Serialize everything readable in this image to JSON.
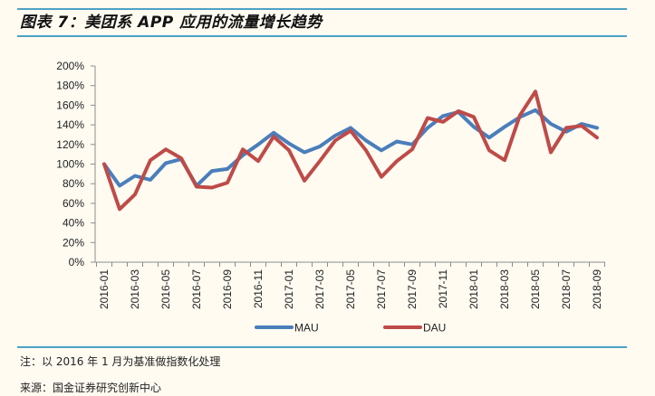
{
  "header": {
    "title": "图表 7：美团系 APP 应用的流量增长趋势"
  },
  "footer": {
    "note": "注：以 2016 年 1 月为基准做指数化处理",
    "source": "来源：国金证券研究创新中心"
  },
  "colors": {
    "rule": "#4DA1C6",
    "mau": "#4A7EBB",
    "dau": "#BE4B48",
    "background": "#FFFBF1"
  },
  "chart_data": {
    "type": "line",
    "title": "美团系 APP 应用的流量增长趋势",
    "xlabel": "",
    "ylabel": "",
    "ylim": [
      0,
      200
    ],
    "y_ticks": [
      "0%",
      "20%",
      "40%",
      "60%",
      "80%",
      "100%",
      "120%",
      "140%",
      "160%",
      "180%",
      "200%"
    ],
    "x_tick_labels": [
      "2016-01",
      "2016-03",
      "2016-05",
      "2016-07",
      "2016-09",
      "2016-11",
      "2017-01",
      "2017-03",
      "2017-05",
      "2017-07",
      "2017-09",
      "2017-11",
      "2018-01",
      "2018-03",
      "2018-05",
      "2018-07",
      "2018-09"
    ],
    "grid": false,
    "legend_position": "bottom",
    "x": [
      "2016-01",
      "2016-02",
      "2016-03",
      "2016-04",
      "2016-05",
      "2016-06",
      "2016-07",
      "2016-08",
      "2016-09",
      "2016-10",
      "2016-11",
      "2016-12",
      "2017-01",
      "2017-02",
      "2017-03",
      "2017-04",
      "2017-05",
      "2017-06",
      "2017-07",
      "2017-08",
      "2017-09",
      "2017-10",
      "2017-11",
      "2017-12",
      "2018-01",
      "2018-02",
      "2018-03",
      "2018-04",
      "2018-05",
      "2018-06",
      "2018-07",
      "2018-08",
      "2018-09"
    ],
    "series": [
      {
        "name": "MAU",
        "color": "#4A7EBB",
        "values": [
          100,
          78,
          88,
          84,
          101,
          105,
          78,
          93,
          95,
          109,
          120,
          132,
          121,
          112,
          118,
          129,
          137,
          124,
          114,
          123,
          120,
          137,
          149,
          153,
          138,
          127,
          138,
          148,
          155,
          141,
          133,
          141,
          137
        ]
      },
      {
        "name": "DAU",
        "color": "#BE4B48",
        "values": [
          100,
          54,
          69,
          104,
          115,
          106,
          77,
          76,
          81,
          115,
          103,
          128,
          114,
          83,
          103,
          124,
          134,
          114,
          87,
          103,
          115,
          147,
          143,
          154,
          148,
          114,
          104,
          150,
          174,
          112,
          137,
          139,
          127
        ]
      }
    ]
  }
}
